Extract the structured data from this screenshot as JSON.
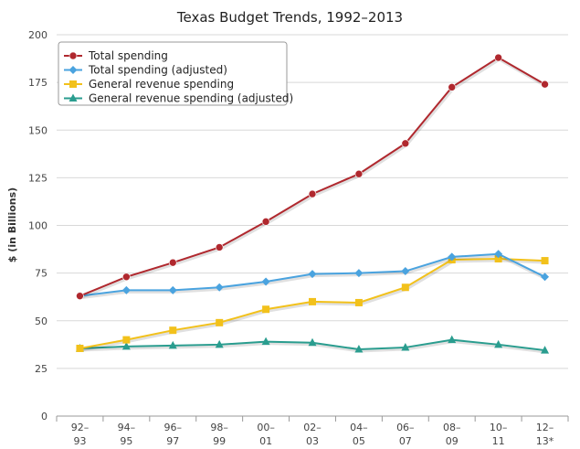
{
  "chart_data": {
    "type": "line",
    "title": "Texas Budget Trends, 1992–2013",
    "ylabel": "$ (in Billions)",
    "xlabel": "",
    "ylim": [
      0,
      200
    ],
    "yticks": [
      "0",
      "25",
      "50",
      "75",
      "100",
      "125",
      "150",
      "175",
      "200"
    ],
    "grid": true,
    "legend_position": "top-left",
    "categories": [
      [
        "92–",
        "93"
      ],
      [
        "94–",
        "95"
      ],
      [
        "96–",
        "97"
      ],
      [
        "98–",
        "99"
      ],
      [
        "00–",
        "01"
      ],
      [
        "02–",
        "03"
      ],
      [
        "04–",
        "05"
      ],
      [
        "06–",
        "07"
      ],
      [
        "08–",
        "09"
      ],
      [
        "10–",
        "11"
      ],
      [
        "12–",
        "13*"
      ]
    ],
    "series": [
      {
        "name": "Total spending",
        "color": "#b0282e",
        "marker": "circle",
        "values": [
          63,
          73,
          80.5,
          88.5,
          102,
          116.5,
          127,
          143,
          172.5,
          188,
          174
        ]
      },
      {
        "name": "Total spending (adjusted)",
        "color": "#4aa3df",
        "marker": "diamond",
        "values": [
          63,
          66,
          66,
          67.5,
          70.5,
          74.5,
          75,
          76,
          83.5,
          85,
          73
        ]
      },
      {
        "name": "General revenue spending",
        "color": "#f2c11b",
        "marker": "square",
        "values": [
          35.5,
          40,
          45,
          49,
          56,
          60,
          59.5,
          67.5,
          82,
          82.5,
          81.5
        ]
      },
      {
        "name": "General revenue spending (adjusted)",
        "color": "#2a9d8f",
        "marker": "triangle",
        "values": [
          35.5,
          36.5,
          37,
          37.5,
          39,
          38.5,
          35,
          36,
          40,
          37.5,
          34.5
        ]
      }
    ]
  }
}
